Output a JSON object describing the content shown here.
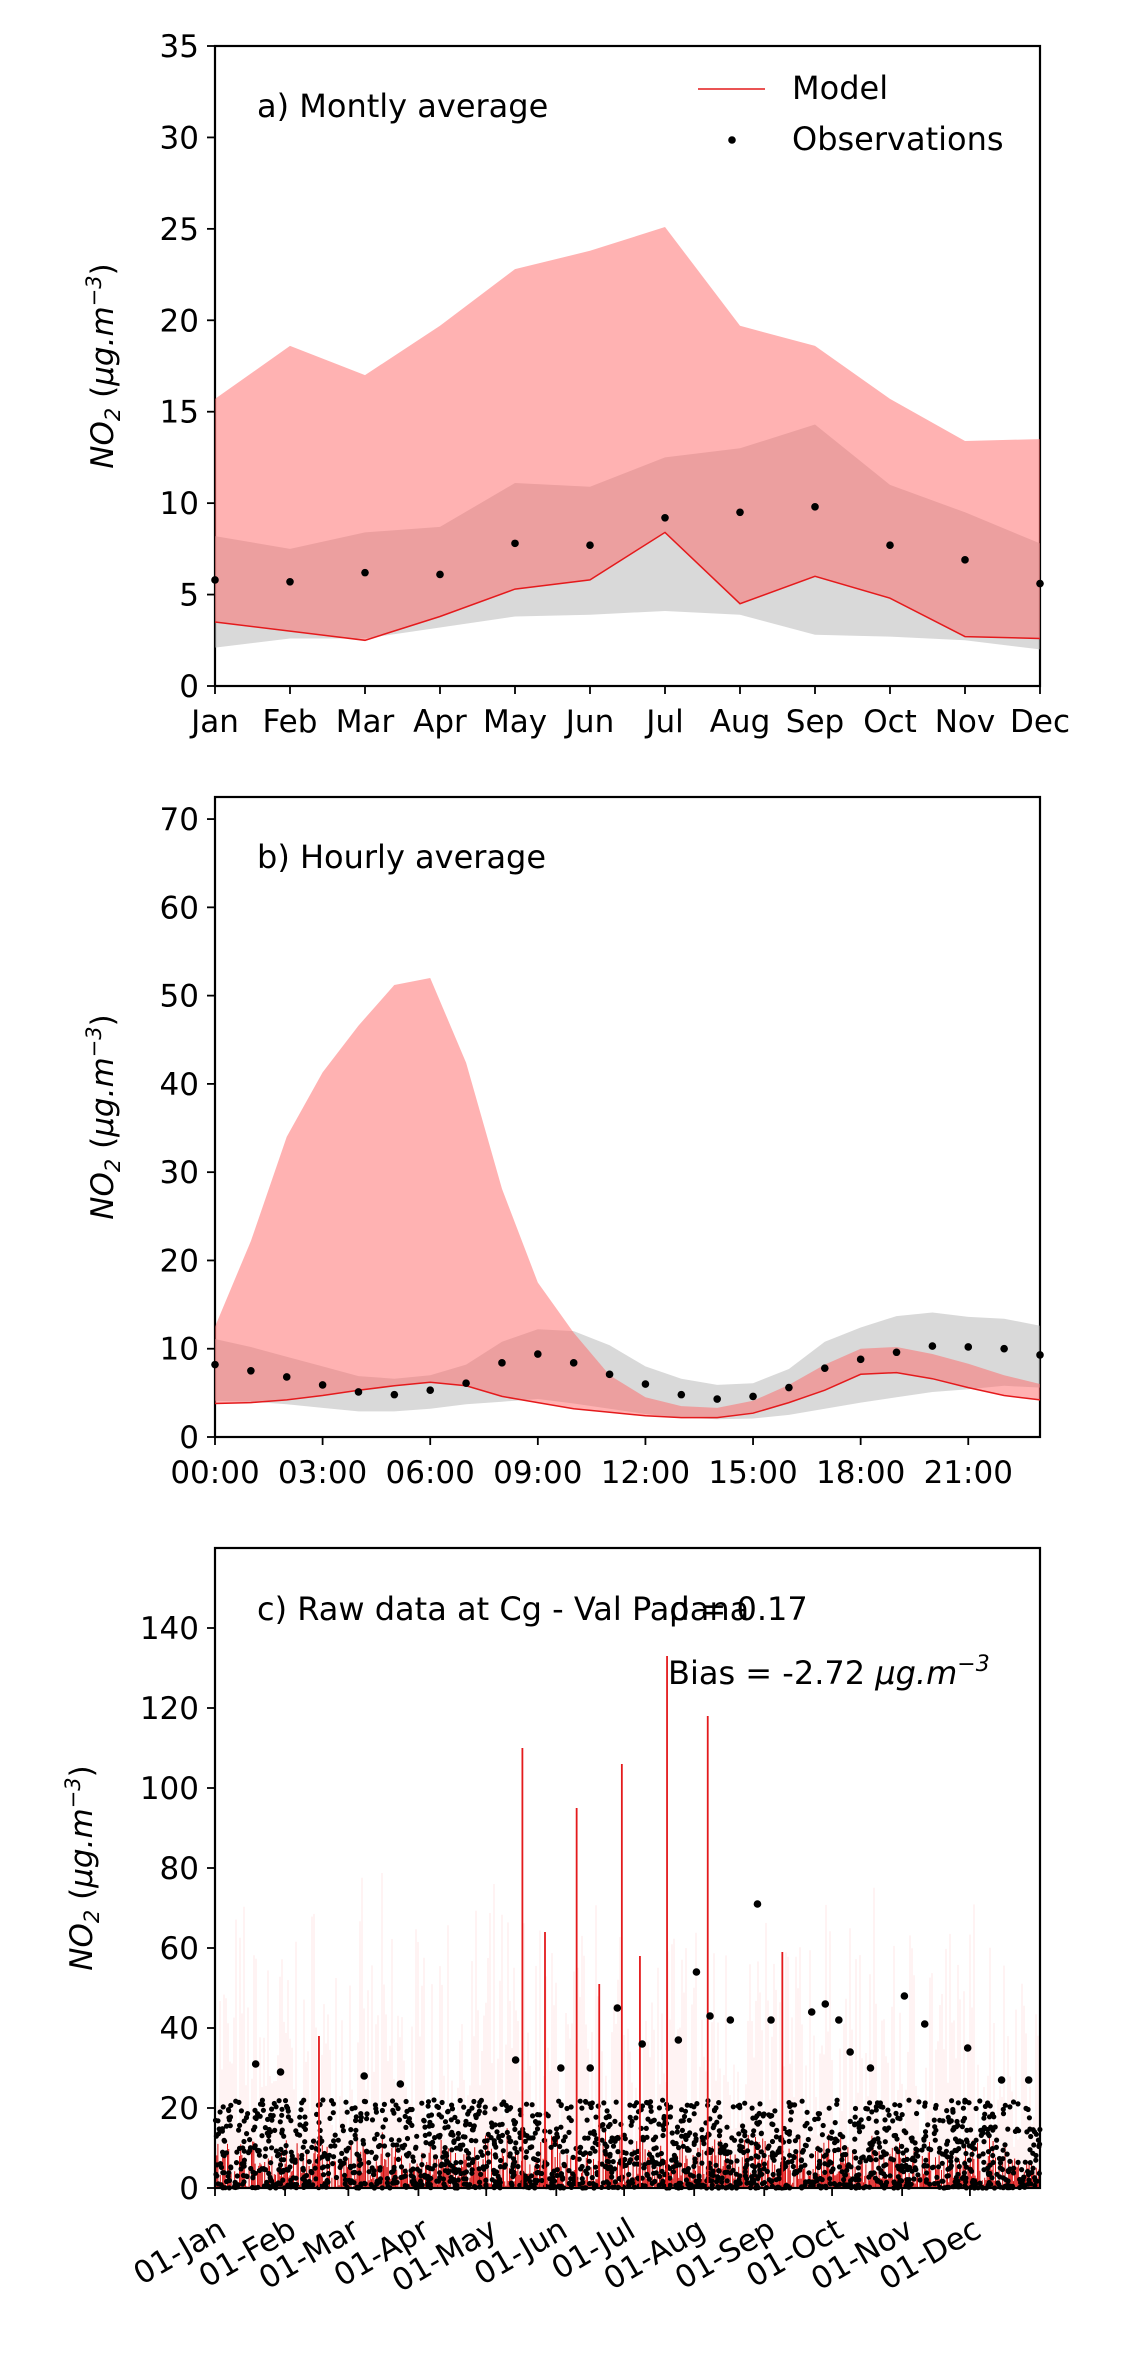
{
  "chart_data": [
    {
      "type": "line",
      "title": "a) Montly average",
      "ylabel": "NO2 (µg.m-3)",
      "ylabel_parts": {
        "base": "NO",
        "sub": "2",
        "unit_open": " (",
        "unit": "µg.m",
        "exp": "−3",
        "unit_close": ")"
      },
      "xlabel": "",
      "ylim": [
        0,
        35
      ],
      "yticks": [
        0,
        5,
        10,
        15,
        20,
        25,
        30,
        35
      ],
      "categories": [
        "Jan",
        "Feb",
        "Mar",
        "Apr",
        "May",
        "Jun",
        "Jul",
        "Aug",
        "Sep",
        "Oct",
        "Nov",
        "Dec"
      ],
      "legend": {
        "position": "top-right",
        "entries": [
          "Model",
          "Observations"
        ]
      },
      "series": [
        {
          "name": "Model",
          "kind": "line",
          "color": "#e41a1c",
          "values": [
            3.5,
            3.0,
            2.5,
            3.8,
            5.3,
            5.8,
            8.4,
            4.5,
            6.0,
            4.8,
            2.7,
            2.6
          ]
        },
        {
          "name": "Observations",
          "kind": "points",
          "color": "#000000",
          "values": [
            5.8,
            5.7,
            6.2,
            6.1,
            7.8,
            7.7,
            9.2,
            9.5,
            9.8,
            7.7,
            6.9,
            5.6
          ]
        }
      ],
      "bands": [
        {
          "of": "Observations",
          "color": "#b3b3b3",
          "lower": [
            2.1,
            2.6,
            2.6,
            3.2,
            3.8,
            3.9,
            4.1,
            3.9,
            2.8,
            2.7,
            2.5,
            2.0
          ],
          "upper": [
            8.2,
            7.5,
            8.4,
            8.7,
            11.1,
            10.9,
            12.5,
            13.0,
            14.3,
            11.0,
            9.5,
            7.8
          ]
        },
        {
          "of": "Model",
          "color": "#ff6666",
          "lower": [
            3.5,
            3.0,
            2.5,
            3.8,
            5.3,
            5.8,
            8.4,
            4.5,
            6.0,
            4.8,
            2.7,
            2.6
          ],
          "upper": [
            15.7,
            18.6,
            17.0,
            19.7,
            22.8,
            23.8,
            25.1,
            19.7,
            18.6,
            15.7,
            13.4,
            13.5
          ]
        }
      ]
    },
    {
      "type": "line",
      "title": "b) Hourly average",
      "ylabel": "NO2 (µg.m-3)",
      "ylabel_parts": {
        "base": "NO",
        "sub": "2",
        "unit_open": " (",
        "unit": "µg.m",
        "exp": "−3",
        "unit_close": ")"
      },
      "xlabel": "",
      "ylim": [
        0,
        72.5
      ],
      "yticks": [
        0,
        10,
        20,
        30,
        40,
        50,
        60,
        70
      ],
      "x": [
        0,
        1,
        2,
        3,
        4,
        5,
        6,
        7,
        8,
        9,
        10,
        11,
        12,
        13,
        14,
        15,
        16,
        17,
        18,
        19,
        20,
        21,
        22,
        23
      ],
      "xticks": [
        {
          "hour": 0,
          "label": "00:00"
        },
        {
          "hour": 3,
          "label": "03:00"
        },
        {
          "hour": 6,
          "label": "06:00"
        },
        {
          "hour": 9,
          "label": "09:00"
        },
        {
          "hour": 12,
          "label": "12:00"
        },
        {
          "hour": 15,
          "label": "15:00"
        },
        {
          "hour": 18,
          "label": "18:00"
        },
        {
          "hour": 21,
          "label": "21:00"
        }
      ],
      "series": [
        {
          "name": "Model",
          "kind": "line",
          "color": "#e41a1c",
          "values": [
            3.8,
            3.9,
            4.2,
            4.7,
            5.3,
            5.8,
            6.2,
            5.8,
            4.6,
            3.9,
            3.2,
            2.8,
            2.4,
            2.2,
            2.2,
            2.7,
            3.9,
            5.3,
            7.1,
            7.3,
            6.6,
            5.6,
            4.7,
            4.2
          ]
        },
        {
          "name": "Observations",
          "kind": "points",
          "color": "#000000",
          "values": [
            8.2,
            7.5,
            6.8,
            5.9,
            5.1,
            4.8,
            5.3,
            6.1,
            8.4,
            9.4,
            8.4,
            7.1,
            6.0,
            4.8,
            4.3,
            4.6,
            5.6,
            7.8,
            8.8,
            9.6,
            10.3,
            10.2,
            10.0,
            9.3
          ]
        }
      ],
      "bands": [
        {
          "of": "Observations",
          "color": "#b3b3b3",
          "lower": [
            4.1,
            4.0,
            3.7,
            3.3,
            2.9,
            2.9,
            3.2,
            3.7,
            4.0,
            4.3,
            3.8,
            3.2,
            2.6,
            2.2,
            2.0,
            2.1,
            2.5,
            3.2,
            3.9,
            4.5,
            5.1,
            5.4,
            5.8,
            5.6
          ],
          "upper": [
            11.1,
            10.2,
            9.1,
            8.0,
            6.9,
            6.6,
            7.0,
            8.2,
            10.8,
            12.2,
            12.0,
            10.4,
            8.0,
            6.6,
            5.9,
            6.1,
            7.7,
            10.8,
            12.4,
            13.7,
            14.1,
            13.6,
            13.4,
            12.6
          ]
        },
        {
          "of": "Model",
          "color": "#ff6666",
          "lower": [
            3.8,
            3.9,
            4.2,
            4.7,
            5.3,
            5.8,
            6.2,
            5.8,
            4.6,
            3.9,
            3.2,
            2.8,
            2.4,
            2.2,
            2.2,
            2.7,
            3.9,
            5.3,
            7.1,
            7.3,
            6.6,
            5.6,
            4.7,
            4.2
          ],
          "upper": [
            12.5,
            22.2,
            34.0,
            41.3,
            46.6,
            51.2,
            52.0,
            42.4,
            28.1,
            17.5,
            11.8,
            7.0,
            4.5,
            3.5,
            3.3,
            4.1,
            5.9,
            8.2,
            10.0,
            10.2,
            9.4,
            8.3,
            7.0,
            6.0
          ]
        }
      ]
    },
    {
      "type": "line",
      "title": "c) Raw data at Cg - Val Padana",
      "stats": {
        "correlation": "ρ = 0.17",
        "bias_text": "Bias = -2.72 ",
        "bias_unit": "µg.m",
        "bias_exp": "−3"
      },
      "ylabel": "NO2 (µg.m-3)",
      "ylabel_parts": {
        "base": "NO",
        "sub": "2",
        "unit_open": " (",
        "unit": "µg.m",
        "exp": "−3",
        "unit_close": ")"
      },
      "xlabel": "",
      "ylim": [
        0,
        160
      ],
      "yticks": [
        0,
        20,
        40,
        60,
        80,
        100,
        120,
        140
      ],
      "xlim_day": [
        0,
        365
      ],
      "xticks": [
        {
          "day": 0,
          "label": "01-Jan"
        },
        {
          "day": 31,
          "label": "01-Feb"
        },
        {
          "day": 59,
          "label": "01-Mar"
        },
        {
          "day": 90,
          "label": "01-Apr"
        },
        {
          "day": 120,
          "label": "01-May"
        },
        {
          "day": 151,
          "label": "01-Jun"
        },
        {
          "day": 181,
          "label": "01-Jul"
        },
        {
          "day": 212,
          "label": "01-Aug"
        },
        {
          "day": 243,
          "label": "01-Sep"
        },
        {
          "day": 273,
          "label": "01-Oct"
        },
        {
          "day": 304,
          "label": "01-Nov"
        },
        {
          "day": 334,
          "label": "01-Dec"
        }
      ],
      "series": [
        {
          "name": "Model",
          "kind": "line",
          "color": "#e41a1c",
          "note": "hourly model series; largest spikes listed",
          "baseline": [
            0,
            15
          ],
          "x_day": [
            46,
            136,
            146,
            160,
            170,
            180,
            188,
            200,
            218,
            251
          ],
          "values": [
            38,
            110,
            64,
            95,
            51,
            106,
            58,
            133,
            118,
            59
          ]
        },
        {
          "name": "Observations",
          "kind": "points",
          "color": "#000000",
          "note": "hourly observations; outliers listed",
          "baseline": [
            0,
            22
          ],
          "x_day": [
            18,
            29,
            66,
            82,
            133,
            153,
            166,
            178,
            189,
            205,
            213,
            219,
            228,
            240,
            246,
            264,
            270,
            276,
            281,
            290,
            305,
            314,
            333,
            348,
            360
          ],
          "values": [
            31,
            29,
            28,
            26,
            32,
            30,
            30,
            45,
            36,
            37,
            54,
            43,
            42,
            71,
            42,
            44,
            46,
            42,
            34,
            30,
            48,
            41,
            35,
            27,
            27
          ]
        }
      ]
    }
  ]
}
